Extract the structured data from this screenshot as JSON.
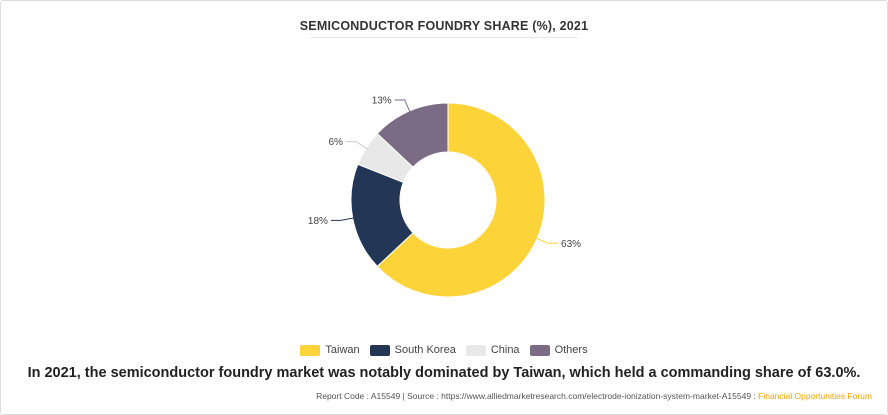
{
  "chart_data": {
    "type": "pie",
    "variant": "donut",
    "title": "SEMICONDUCTOR FOUNDRY SHARE (%), 2021",
    "categories": [
      "Taiwan",
      "South Korea",
      "China",
      "Others"
    ],
    "values": [
      63,
      18,
      6,
      13
    ],
    "labels": [
      "63%",
      "18%",
      "6%",
      "13%"
    ],
    "colors": [
      "#fdd33a",
      "#243655",
      "#e8e8e8",
      "#7c6b84"
    ],
    "legend_position": "bottom"
  },
  "caption": "In 2021, the semiconductor foundry market was notably dominated by Taiwan, which held a commanding share of 63.0%.",
  "footer": {
    "text": "Report Code : A15549  |  Source : https://www.alliedmarketresearch.com/electrode-ionization-system-market-A15549 : ",
    "brand": "Financial Opportunities Forum",
    "brand_color": "#f5a300"
  }
}
